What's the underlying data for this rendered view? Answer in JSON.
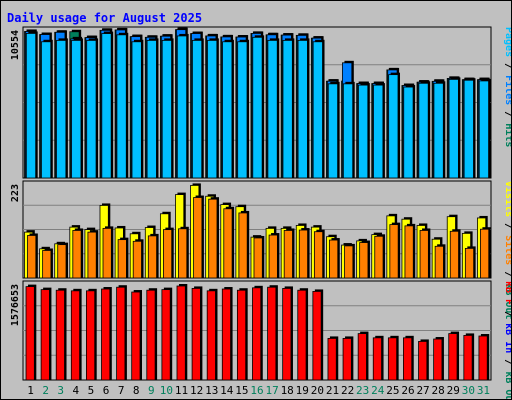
{
  "chart_data": {
    "type": "bar",
    "title": "Daily usage for August 2025",
    "colors": {
      "background": "#c0c0c0",
      "plot_bg": "#c0c0c0",
      "hits": "#00805c",
      "files": "#0080ff",
      "pages": "#00c0ff",
      "visits": "#ffff00",
      "sites": "#ff8000",
      "kbytes": "#ff0000",
      "title": "#0000ff",
      "weekend_label": "#00805c",
      "weekday_label": "#000000",
      "gridline": "#808080"
    },
    "categories": [
      "1",
      "2",
      "3",
      "4",
      "5",
      "6",
      "7",
      "8",
      "9",
      "10",
      "11",
      "12",
      "13",
      "14",
      "15",
      "16",
      "17",
      "18",
      "19",
      "20",
      "21",
      "22",
      "23",
      "24",
      "25",
      "26",
      "27",
      "28",
      "29",
      "30",
      "31"
    ],
    "weekend_days": [
      "2",
      "3",
      "9",
      "10",
      "16",
      "17",
      "23",
      "24",
      "30",
      "31"
    ],
    "panels": [
      {
        "id": "top",
        "ymax_label": "10554",
        "ylim": [
          0,
          10554
        ],
        "right_label_parts": [
          {
            "text": "Pages",
            "color": "#00c0ff"
          },
          {
            "text": " / ",
            "color": "#000000"
          },
          {
            "text": "Files",
            "color": "#0080ff"
          },
          {
            "text": " / ",
            "color": "#000000"
          },
          {
            "text": "Hits",
            "color": "#00805c"
          }
        ],
        "series": [
          {
            "name": "Hits",
            "key": "hits",
            "values": [
              10520,
              10300,
              10460,
              10500,
              10080,
              10600,
              10630,
              10150,
              10100,
              10180,
              10650,
              10370,
              10200,
              10130,
              10120,
              10380,
              10280,
              10260,
              10240,
              10040,
              6950,
              6960,
              6780,
              6780,
              7760,
              6640,
              6880,
              6940,
              7150,
              7060,
              7060
            ]
          },
          {
            "name": "Files",
            "key": "files",
            "values": [
              10520,
              10300,
              10460,
              9990,
              10080,
              10600,
              10630,
              10150,
              10100,
              10180,
              10650,
              10370,
              10200,
              10130,
              10120,
              10380,
              10280,
              10260,
              10240,
              10040,
              6950,
              8270,
              6780,
              6780,
              7760,
              6640,
              6880,
              6940,
              7150,
              7060,
              7060
            ]
          },
          {
            "name": "Pages",
            "key": "pages",
            "values": [
              10380,
              9780,
              9880,
              9880,
              9880,
              10370,
              10280,
              9780,
              9880,
              9880,
              10200,
              9880,
              9880,
              9780,
              9780,
              10100,
              9880,
              9880,
              9880,
              9780,
              6760,
              6760,
              6670,
              6670,
              7420,
              6530,
              6800,
              6800,
              7080,
              7020,
              6970
            ]
          }
        ]
      },
      {
        "id": "middle",
        "ymax_label": "223",
        "ylim": [
          0,
          223
        ],
        "right_label_parts": [
          {
            "text": "Visits",
            "color": "#ffff00"
          },
          {
            "text": " / ",
            "color": "#000000"
          },
          {
            "text": "Sites",
            "color": "#ff8000"
          },
          {
            "text": " / ",
            "color": "#000000"
          },
          {
            "text": "kB Out",
            "color": "#00805c"
          }
        ],
        "series": [
          {
            "name": "Visits",
            "key": "visits",
            "values": [
              110,
              70,
              82,
              122,
              116,
              174,
              120,
              106,
              121,
              154,
              200,
              222,
              196,
              176,
              171,
              98,
              119,
              119,
              126,
              122,
              99,
              79,
              89,
              104,
              149,
              141,
              126,
              93,
              147,
              107,
              144
            ]
          },
          {
            "name": "Sites",
            "key": "sites",
            "values": [
              102,
              66,
              80,
              114,
              110,
              119,
              92,
              88,
              101,
              116,
              118,
              193,
              189,
              166,
              156,
              96,
              103,
              114,
              115,
              111,
              91,
              77,
              85,
              100,
              128,
              125,
              114,
              76,
              112,
              71,
              117
            ]
          }
        ]
      },
      {
        "id": "bottom",
        "ymax_label": "1576653",
        "ylim": [
          0,
          1576653
        ],
        "right_label_parts": [
          {
            "text": "kB F",
            "color": "#ff0000"
          },
          {
            "text": " / ",
            "color": "#000000"
          },
          {
            "text": "kB In",
            "color": "#0000ff"
          },
          {
            "text": " / ",
            "color": "#000000"
          },
          {
            "text": "kB Out",
            "color": "#00805c"
          }
        ],
        "series": [
          {
            "name": "kB F",
            "key": "kbytes",
            "values": [
              1550000,
              1500000,
              1490000,
              1480000,
              1480000,
              1510000,
              1540000,
              1460000,
              1490000,
              1500000,
              1560000,
              1520000,
              1480000,
              1510000,
              1490000,
              1530000,
              1540000,
              1520000,
              1490000,
              1470000,
              690000,
              690000,
              770000,
              700000,
              700000,
              700000,
              640000,
              680000,
              770000,
              740000,
              730000
            ]
          }
        ]
      }
    ]
  }
}
